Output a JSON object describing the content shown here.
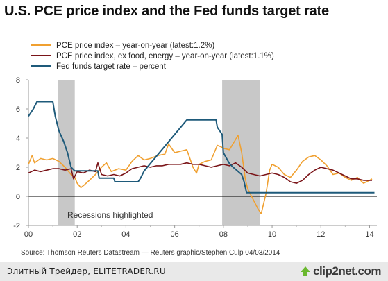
{
  "title": "U.S. PCE price index and the Fed funds target rate",
  "source": "Source: Thomson Reuters Datastream — Reuters graphic/Stephen Culp 04/03/2014",
  "footer": {
    "text": "Элитный Трейдер, ELITETRADER.RU",
    "logo": "clip2net.com",
    "logo_icon": "up-arrow-icon"
  },
  "colors": {
    "pce": "#f0a030",
    "core": "#7a1418",
    "fed": "#1e5a7a",
    "recession": "#c8c8c8",
    "logo_arrow": "#6ab82e"
  },
  "chart_data": {
    "type": "line",
    "x_unit": "year (20xx)",
    "xlim": [
      2000,
      2014.3
    ],
    "ylim": [
      -2,
      8
    ],
    "yticks": [
      -2,
      0,
      2,
      4,
      6,
      8
    ],
    "xticks": [
      {
        "value": 2000,
        "label": "00"
      },
      {
        "value": 2002,
        "label": "02"
      },
      {
        "value": 2004,
        "label": "04"
      },
      {
        "value": 2006,
        "label": "06"
      },
      {
        "value": 2008,
        "label": "08"
      },
      {
        "value": 2010,
        "label": "10"
      },
      {
        "value": 2012,
        "label": "12"
      },
      {
        "value": 2014,
        "label": "14"
      }
    ],
    "annotation": "Recessions highlighted",
    "recessions": [
      [
        2001.2,
        2001.9
      ],
      [
        2007.95,
        2009.5
      ]
    ],
    "legend_position": "top-left",
    "series": [
      {
        "name": "PCE price index – year-on-year (latest:1.2%)",
        "color": "#f0a030",
        "points": [
          [
            2000.0,
            2.2
          ],
          [
            2000.15,
            2.8
          ],
          [
            2000.25,
            2.3
          ],
          [
            2000.5,
            2.6
          ],
          [
            2000.75,
            2.5
          ],
          [
            2001.0,
            2.6
          ],
          [
            2001.25,
            2.4
          ],
          [
            2001.5,
            2.0
          ],
          [
            2001.75,
            1.5
          ],
          [
            2001.9,
            1.3
          ],
          [
            2002.0,
            0.9
          ],
          [
            2002.15,
            0.6
          ],
          [
            2002.3,
            0.8
          ],
          [
            2002.5,
            1.1
          ],
          [
            2002.75,
            1.5
          ],
          [
            2003.0,
            2.0
          ],
          [
            2003.2,
            2.3
          ],
          [
            2003.4,
            1.7
          ],
          [
            2003.7,
            1.9
          ],
          [
            2004.0,
            1.8
          ],
          [
            2004.25,
            2.4
          ],
          [
            2004.5,
            2.8
          ],
          [
            2004.75,
            2.5
          ],
          [
            2005.0,
            2.6
          ],
          [
            2005.3,
            2.8
          ],
          [
            2005.6,
            2.9
          ],
          [
            2005.75,
            3.6
          ],
          [
            2006.0,
            3.0
          ],
          [
            2006.25,
            3.1
          ],
          [
            2006.5,
            3.2
          ],
          [
            2006.75,
            2.0
          ],
          [
            2006.9,
            1.6
          ],
          [
            2007.0,
            2.2
          ],
          [
            2007.25,
            2.4
          ],
          [
            2007.5,
            2.5
          ],
          [
            2007.75,
            3.5
          ],
          [
            2007.9,
            3.4
          ],
          [
            2008.0,
            3.3
          ],
          [
            2008.25,
            3.2
          ],
          [
            2008.5,
            3.9
          ],
          [
            2008.6,
            4.2
          ],
          [
            2008.75,
            3.0
          ],
          [
            2008.9,
            1.2
          ],
          [
            2009.0,
            0.5
          ],
          [
            2009.25,
            -0.3
          ],
          [
            2009.4,
            -0.8
          ],
          [
            2009.55,
            -1.2
          ],
          [
            2009.75,
            0.2
          ],
          [
            2009.9,
            1.8
          ],
          [
            2010.0,
            2.2
          ],
          [
            2010.25,
            2.0
          ],
          [
            2010.5,
            1.5
          ],
          [
            2010.75,
            1.3
          ],
          [
            2011.0,
            1.8
          ],
          [
            2011.25,
            2.4
          ],
          [
            2011.5,
            2.7
          ],
          [
            2011.75,
            2.8
          ],
          [
            2012.0,
            2.5
          ],
          [
            2012.25,
            2.1
          ],
          [
            2012.5,
            1.5
          ],
          [
            2012.75,
            1.6
          ],
          [
            2013.0,
            1.3
          ],
          [
            2013.25,
            1.1
          ],
          [
            2013.5,
            1.3
          ],
          [
            2013.75,
            0.9
          ],
          [
            2014.0,
            1.1
          ],
          [
            2014.1,
            1.2
          ]
        ]
      },
      {
        "name": "PCE price index, ex food, energy – year-on-year (latest:1.1%)",
        "color": "#7a1418",
        "points": [
          [
            2000.0,
            1.6
          ],
          [
            2000.25,
            1.8
          ],
          [
            2000.5,
            1.7
          ],
          [
            2000.75,
            1.8
          ],
          [
            2001.0,
            1.9
          ],
          [
            2001.25,
            1.9
          ],
          [
            2001.5,
            1.8
          ],
          [
            2001.75,
            1.9
          ],
          [
            2001.85,
            1.2
          ],
          [
            2002.0,
            1.7
          ],
          [
            2002.25,
            1.6
          ],
          [
            2002.5,
            1.8
          ],
          [
            2002.75,
            1.7
          ],
          [
            2002.85,
            2.3
          ],
          [
            2003.0,
            1.5
          ],
          [
            2003.25,
            1.4
          ],
          [
            2003.5,
            1.5
          ],
          [
            2003.75,
            1.4
          ],
          [
            2004.0,
            1.6
          ],
          [
            2004.25,
            1.9
          ],
          [
            2004.5,
            2.0
          ],
          [
            2004.75,
            2.1
          ],
          [
            2005.0,
            2.0
          ],
          [
            2005.25,
            2.1
          ],
          [
            2005.5,
            2.1
          ],
          [
            2005.75,
            2.2
          ],
          [
            2006.0,
            2.2
          ],
          [
            2006.25,
            2.2
          ],
          [
            2006.5,
            2.3
          ],
          [
            2006.75,
            2.2
          ],
          [
            2007.0,
            2.2
          ],
          [
            2007.25,
            2.1
          ],
          [
            2007.5,
            2.0
          ],
          [
            2007.75,
            2.1
          ],
          [
            2008.0,
            2.2
          ],
          [
            2008.25,
            2.1
          ],
          [
            2008.5,
            2.3
          ],
          [
            2008.75,
            2.0
          ],
          [
            2009.0,
            1.6
          ],
          [
            2009.25,
            1.5
          ],
          [
            2009.5,
            1.4
          ],
          [
            2009.75,
            1.5
          ],
          [
            2010.0,
            1.6
          ],
          [
            2010.25,
            1.5
          ],
          [
            2010.5,
            1.3
          ],
          [
            2010.75,
            1.0
          ],
          [
            2011.0,
            0.9
          ],
          [
            2011.25,
            1.1
          ],
          [
            2011.5,
            1.5
          ],
          [
            2011.75,
            1.8
          ],
          [
            2012.0,
            2.0
          ],
          [
            2012.25,
            1.9
          ],
          [
            2012.5,
            1.8
          ],
          [
            2012.75,
            1.6
          ],
          [
            2013.0,
            1.4
          ],
          [
            2013.25,
            1.2
          ],
          [
            2013.5,
            1.2
          ],
          [
            2013.75,
            1.1
          ],
          [
            2014.0,
            1.1
          ],
          [
            2014.1,
            1.1
          ]
        ]
      },
      {
        "name": "Fed funds target rate – percent",
        "color": "#1e5a7a",
        "points": [
          [
            2000.0,
            5.5
          ],
          [
            2000.1,
            5.75
          ],
          [
            2000.2,
            6.0
          ],
          [
            2000.35,
            6.5
          ],
          [
            2001.0,
            6.5
          ],
          [
            2001.1,
            5.5
          ],
          [
            2001.25,
            4.5
          ],
          [
            2001.45,
            3.75
          ],
          [
            2001.6,
            3.0
          ],
          [
            2001.75,
            2.0
          ],
          [
            2001.9,
            1.75
          ],
          [
            2002.85,
            1.75
          ],
          [
            2002.9,
            1.25
          ],
          [
            2003.5,
            1.25
          ],
          [
            2003.55,
            1.0
          ],
          [
            2004.5,
            1.0
          ],
          [
            2004.6,
            1.25
          ],
          [
            2004.75,
            1.75
          ],
          [
            2005.0,
            2.25
          ],
          [
            2005.25,
            2.75
          ],
          [
            2005.5,
            3.25
          ],
          [
            2005.75,
            3.75
          ],
          [
            2006.0,
            4.25
          ],
          [
            2006.25,
            4.75
          ],
          [
            2006.5,
            5.25
          ],
          [
            2007.7,
            5.25
          ],
          [
            2007.75,
            4.75
          ],
          [
            2007.95,
            4.25
          ],
          [
            2008.0,
            3.0
          ],
          [
            2008.25,
            2.25
          ],
          [
            2008.4,
            2.0
          ],
          [
            2008.75,
            1.5
          ],
          [
            2008.85,
            1.0
          ],
          [
            2008.95,
            0.25
          ],
          [
            2014.2,
            0.25
          ]
        ]
      }
    ]
  }
}
